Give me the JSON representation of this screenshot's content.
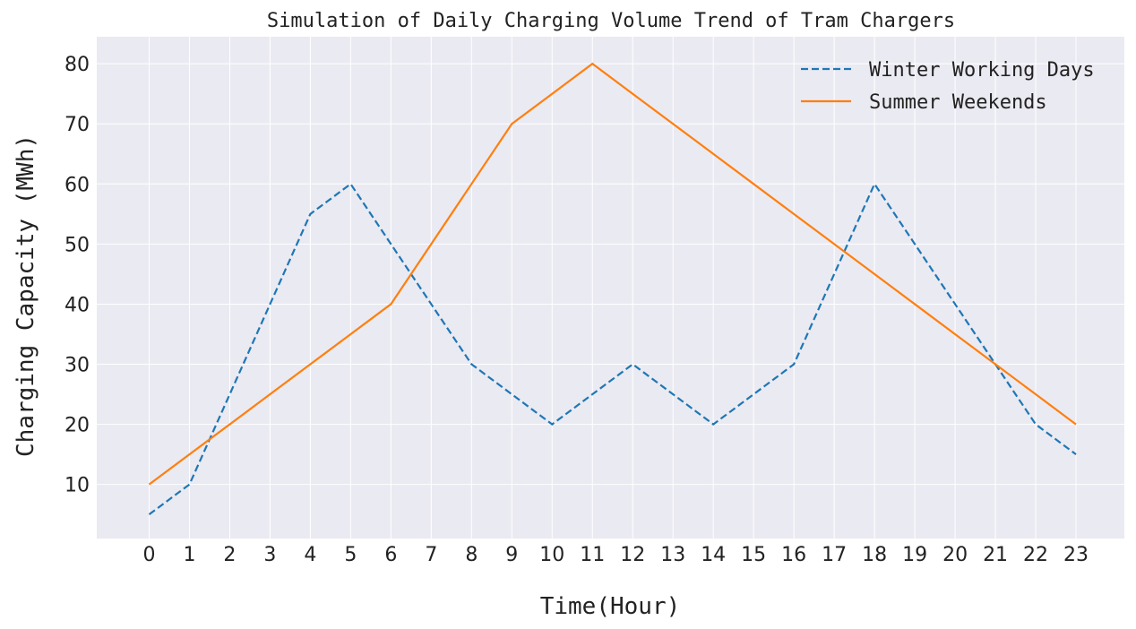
{
  "chart_data": {
    "type": "line",
    "title": "Simulation of Daily Charging Volume Trend of Tram Chargers",
    "xlabel": "Time(Hour)",
    "ylabel": "Charging Capacity (MWh)",
    "x": [
      0,
      1,
      2,
      3,
      4,
      5,
      6,
      7,
      8,
      9,
      10,
      11,
      12,
      13,
      14,
      15,
      16,
      17,
      18,
      19,
      20,
      21,
      22,
      23
    ],
    "xlim": [
      -1.3,
      24.2
    ],
    "ylim": [
      1,
      84.5
    ],
    "yticks": [
      10,
      20,
      30,
      40,
      50,
      60,
      70,
      80
    ],
    "grid": true,
    "legend_position": "top-right",
    "series": [
      {
        "name": "Winter Working Days",
        "style": "dashed",
        "color": "#1f77b4",
        "values": [
          5,
          10,
          25,
          40,
          55,
          60,
          50,
          40,
          30,
          25,
          20,
          25,
          30,
          25,
          20,
          25,
          30,
          45,
          60,
          50,
          40,
          30,
          20,
          15
        ]
      },
      {
        "name": "Summer Weekends",
        "style": "solid",
        "color": "#ff7f0e",
        "values": [
          10,
          15,
          20,
          25,
          30,
          35,
          40,
          50,
          60,
          70,
          75,
          80,
          75,
          70,
          65,
          60,
          55,
          50,
          45,
          40,
          35,
          30,
          25,
          20
        ]
      }
    ]
  },
  "colors": {
    "plot_background": "#eaeaf2",
    "grid": "#ffffff"
  }
}
